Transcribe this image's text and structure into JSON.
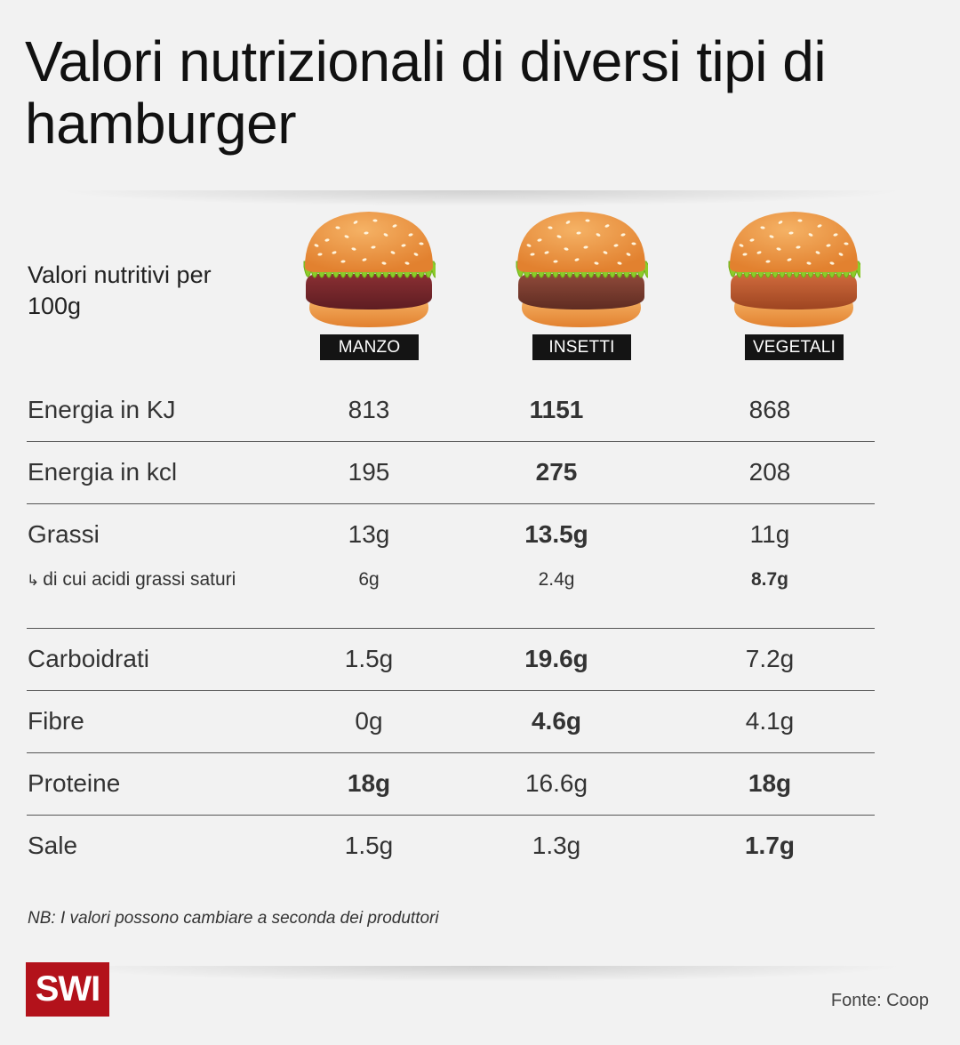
{
  "title": "Valori nutrizionali di diversi tipi di hamburger",
  "header_label": "Valori nutritivi per 100g",
  "columns": [
    {
      "name": "MANZO",
      "patty_color": "#8a2f33",
      "patty_dark": "#5e1d22"
    },
    {
      "name": "INSETTI",
      "patty_color": "#8f4a3a",
      "patty_dark": "#5f2c22"
    },
    {
      "name": "VEGETALI",
      "patty_color": "#cf6a3c",
      "patty_dark": "#9e4521"
    }
  ],
  "colors": {
    "bun_top": "#e2812f",
    "bun_light": "#f5b265",
    "lettuce": "#8ccc2a",
    "logo_red": "#b3121b"
  },
  "chart_data": {
    "type": "table",
    "columns": [
      "MANZO",
      "INSETTI",
      "VEGETALI"
    ],
    "rows": [
      {
        "label": "Energia in KJ",
        "values": [
          "813",
          "1151",
          "868"
        ],
        "bold": [
          false,
          true,
          false
        ]
      },
      {
        "label": "Energia in kcl",
        "values": [
          "195",
          "275",
          "208"
        ],
        "bold": [
          false,
          true,
          false
        ]
      },
      {
        "label": "Grassi",
        "values": [
          "13g",
          "13.5g",
          "11g"
        ],
        "bold": [
          false,
          true,
          false
        ]
      },
      {
        "label": "di cui acidi grassi saturi",
        "sub": true,
        "values": [
          "6g",
          "2.4g",
          "8.7g"
        ],
        "bold": [
          false,
          false,
          true
        ]
      },
      {
        "label": "Carboidrati",
        "values": [
          "1.5g",
          "19.6g",
          "7.2g"
        ],
        "bold": [
          false,
          true,
          false
        ]
      },
      {
        "label": "Fibre",
        "values": [
          "0g",
          "4.6g",
          "4.1g"
        ],
        "bold": [
          false,
          true,
          false
        ]
      },
      {
        "label": "Proteine",
        "values": [
          "18g",
          "16.6g",
          "18g"
        ],
        "bold": [
          true,
          false,
          true
        ]
      },
      {
        "label": "Sale",
        "values": [
          "1.5g",
          "1.3g",
          "1.7g"
        ],
        "bold": [
          false,
          false,
          true
        ]
      }
    ]
  },
  "note": "NB: I valori possono cambiare a seconda dei produttori",
  "logo_text": "SWI",
  "source": "Fonte: Coop"
}
